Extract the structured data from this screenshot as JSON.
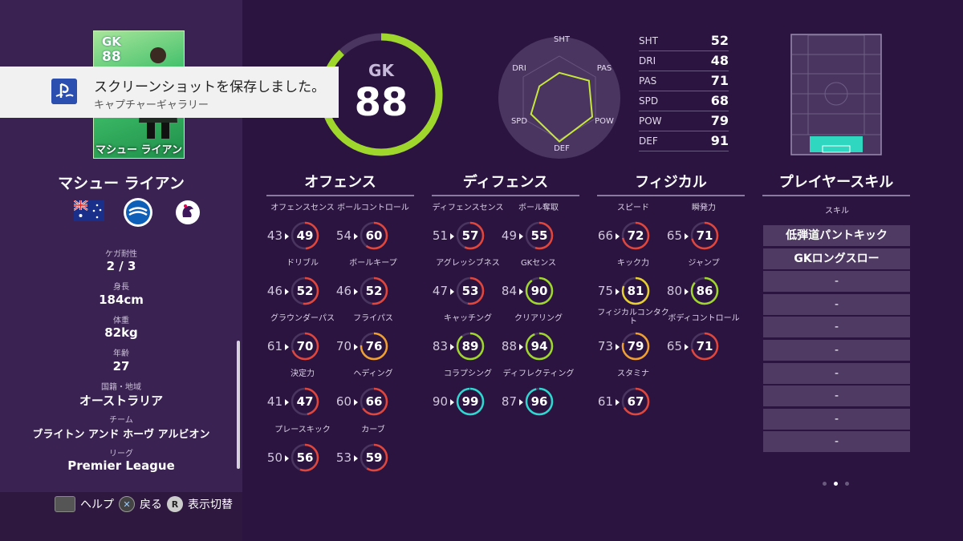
{
  "notification": {
    "title": "スクリーンショットを保存しました。",
    "subtitle": "キャプチャーギャラリー"
  },
  "card": {
    "position": "GK",
    "overall": "88",
    "name": "マシュー ライアン"
  },
  "player": {
    "name": "マシュー ライアン"
  },
  "profile": [
    {
      "label": "ケガ耐性",
      "value": "2 / 3"
    },
    {
      "label": "身長",
      "value": "184cm"
    },
    {
      "label": "体重",
      "value": "82kg"
    },
    {
      "label": "年齢",
      "value": "27"
    },
    {
      "label": "国籍・地域",
      "value": "オーストラリア"
    },
    {
      "label": "チーム",
      "value": "ブライトン アンド ホーヴ アルビオン"
    },
    {
      "label": "リーグ",
      "value": "Premier League"
    }
  ],
  "footer": {
    "help": "ヘルプ",
    "back": "戻る",
    "toggle": "表示切替"
  },
  "overall": {
    "position": "GK",
    "value": "88",
    "fraction": 0.88
  },
  "radar": [
    {
      "key": "SHT",
      "value": 52
    },
    {
      "key": "DRI",
      "value": 48
    },
    {
      "key": "PAS",
      "value": 71
    },
    {
      "key": "SPD",
      "value": 68
    },
    {
      "key": "POW",
      "value": 79
    },
    {
      "key": "DEF",
      "value": 91
    }
  ],
  "sections": [
    {
      "title": "オフェンス",
      "stats": [
        {
          "label": "オフェンスセンス",
          "old": "43",
          "value": 49
        },
        {
          "label": "ボールコントロール",
          "old": "54",
          "value": 60
        },
        {
          "label": "ドリブル",
          "old": "46",
          "value": 52
        },
        {
          "label": "ボールキープ",
          "old": "46",
          "value": 52
        },
        {
          "label": "グラウンダーパス",
          "old": "61",
          "value": 70
        },
        {
          "label": "フライパス",
          "old": "70",
          "value": 76
        },
        {
          "label": "決定力",
          "old": "41",
          "value": 47
        },
        {
          "label": "ヘディング",
          "old": "60",
          "value": 66
        },
        {
          "label": "プレースキック",
          "old": "50",
          "value": 56
        },
        {
          "label": "カーブ",
          "old": "53",
          "value": 59
        }
      ]
    },
    {
      "title": "ディフェンス",
      "stats": [
        {
          "label": "ディフェンスセンス",
          "old": "51",
          "value": 57
        },
        {
          "label": "ボール奪取",
          "old": "49",
          "value": 55
        },
        {
          "label": "アグレッシブネス",
          "old": "47",
          "value": 53
        },
        {
          "label": "GKセンス",
          "old": "84",
          "value": 90
        },
        {
          "label": "キャッチング",
          "old": "83",
          "value": 89
        },
        {
          "label": "クリアリング",
          "old": "88",
          "value": 94
        },
        {
          "label": "コラプシング",
          "old": "90",
          "value": 99
        },
        {
          "label": "ディフレクティング",
          "old": "87",
          "value": 96
        }
      ]
    },
    {
      "title": "フィジカル",
      "stats": [
        {
          "label": "スピード",
          "old": "66",
          "value": 72
        },
        {
          "label": "瞬発力",
          "old": "65",
          "value": 71
        },
        {
          "label": "キック力",
          "old": "75",
          "value": 81
        },
        {
          "label": "ジャンプ",
          "old": "80",
          "value": 86
        },
        {
          "label": "フィジカルコンタクト",
          "old": "73",
          "value": 79
        },
        {
          "label": "ボディコントロール",
          "old": "65",
          "value": 71
        },
        {
          "label": "スタミナ",
          "old": "61",
          "value": 67
        }
      ]
    }
  ],
  "skills": {
    "title": "プレイヤースキル",
    "header": "スキル",
    "items": [
      "低弾道パントキック",
      "GKロングスロー",
      "-",
      "-",
      "-",
      "-",
      "-",
      "-",
      "-",
      "-"
    ]
  },
  "colors": {
    "red": "#e0463c",
    "orange": "#f0a030",
    "yellow": "#e8d030",
    "green": "#9fd72c",
    "cyan": "#2ed8d0",
    "track": "#4a3560",
    "field_highlight": "#2fd6c0"
  }
}
